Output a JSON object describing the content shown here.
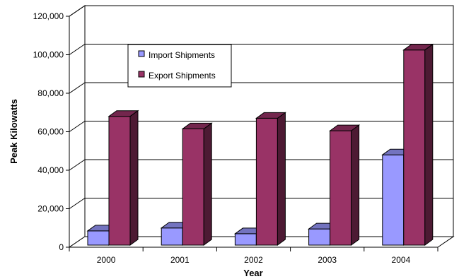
{
  "chart_data": {
    "type": "bar",
    "style": "3d-clustered-column",
    "categories": [
      "2000",
      "2001",
      "2002",
      "2003",
      "2004"
    ],
    "series": [
      {
        "name": "Import Shipments",
        "values": [
          8500,
          10000,
          7000,
          9500,
          48000
        ],
        "color": "#9999ff"
      },
      {
        "name": "Export Shipments",
        "values": [
          68000,
          61500,
          67000,
          60500,
          102500
        ],
        "color": "#993366"
      }
    ],
    "xlabel": "Year",
    "ylabel": "Peak Kilowatts",
    "ylim": [
      0,
      120000
    ],
    "yticks": [
      0,
      20000,
      40000,
      60000,
      80000,
      100000,
      120000
    ],
    "ytick_labels": [
      "0",
      "20,000",
      "40,000",
      "60,000",
      "80,000",
      "100,000",
      "120,000"
    ],
    "grid": true,
    "legend_position": "top-left inside"
  }
}
